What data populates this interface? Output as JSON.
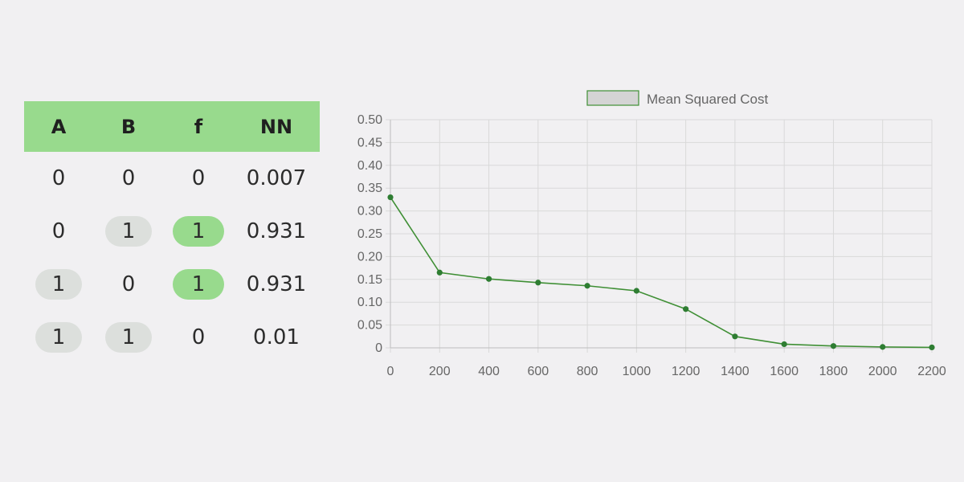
{
  "table": {
    "headers": [
      "A",
      "B",
      "f",
      "NN"
    ],
    "rows": [
      [
        "0",
        "0",
        "0",
        "0.007"
      ],
      [
        "0",
        "1",
        "1",
        "0.931"
      ],
      [
        "1",
        "0",
        "1",
        "0.931"
      ],
      [
        "1",
        "1",
        "0",
        "0.01"
      ]
    ]
  },
  "chart_data": {
    "type": "line",
    "title": "",
    "xlabel": "",
    "ylabel": "",
    "x": [
      0,
      200,
      400,
      600,
      800,
      1000,
      1200,
      1400,
      1600,
      1800,
      2000,
      2200
    ],
    "series": [
      {
        "name": "Mean Squared Cost",
        "values": [
          0.33,
          0.165,
          0.151,
          0.143,
          0.136,
          0.125,
          0.085,
          0.025,
          0.008,
          0.004,
          0.002,
          0.001
        ]
      }
    ],
    "xlim": [
      0,
      2200
    ],
    "ylim": [
      0,
      0.5
    ],
    "x_ticks": [
      "0",
      "200",
      "400",
      "600",
      "800",
      "1000",
      "1200",
      "1400",
      "1600",
      "1800",
      "2000",
      "2200"
    ],
    "y_ticks": [
      "0",
      "0.05",
      "0.10",
      "0.15",
      "0.20",
      "0.25",
      "0.30",
      "0.35",
      "0.40",
      "0.45",
      "0.50"
    ],
    "grid": true,
    "legend_position": "top-center",
    "line_color": "#3f8f35",
    "point_color": "#2e7d32",
    "legend_box_color": "#d4d4d4"
  },
  "colors": {
    "background": "#f1f0f2",
    "highlight_green": "#98da8d",
    "pill_grey": "#dcdfdc"
  }
}
